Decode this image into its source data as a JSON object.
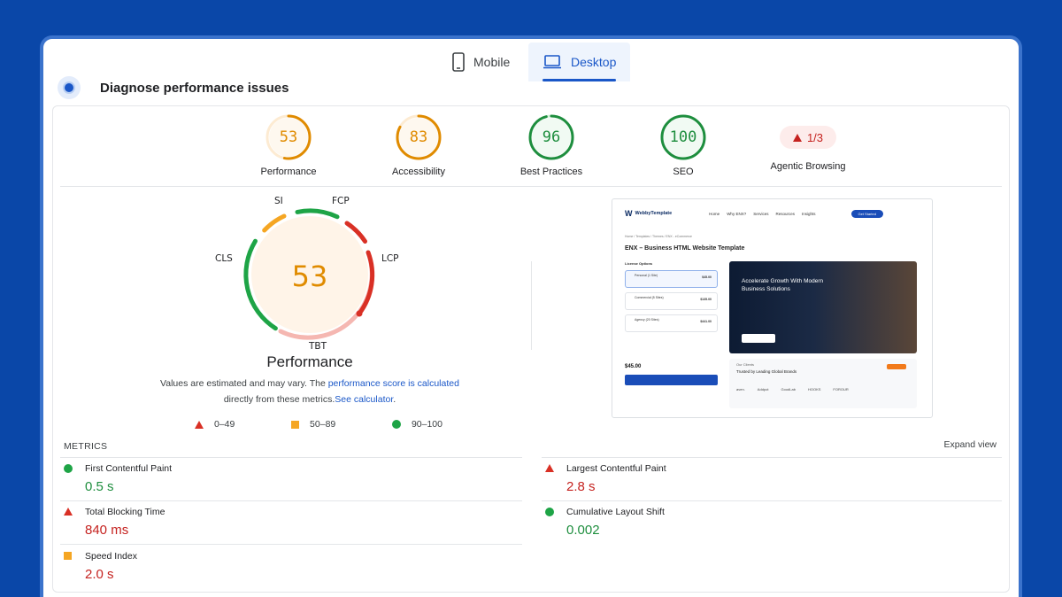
{
  "tabs": [
    {
      "label": "Mobile",
      "icon": "phone-icon",
      "active": false
    },
    {
      "label": "Desktop",
      "icon": "laptop-icon",
      "active": true
    }
  ],
  "header": {
    "title": "Diagnose performance issues"
  },
  "scores": [
    {
      "label": "Performance",
      "value": "53",
      "score": 53,
      "color": "#e08b00",
      "track": "#fdebd2"
    },
    {
      "label": "Accessibility",
      "value": "83",
      "score": 83,
      "color": "#e08b00",
      "track": "#fdebd2"
    },
    {
      "label": "Best Practices",
      "value": "96",
      "score": 96,
      "color": "#1e8e3e",
      "track": "#d6f2dc"
    },
    {
      "label": "SEO",
      "value": "100",
      "score": 100,
      "color": "#1e8e3e",
      "track": "#d6f2dc"
    }
  ],
  "agentic": {
    "label": "Agentic Browsing",
    "value": "1/3"
  },
  "perf": {
    "score": "53",
    "title": "Performance",
    "segments": {
      "si": "SI",
      "fcp": "FCP",
      "lcp": "LCP",
      "tbt": "TBT",
      "cls": "CLS"
    },
    "note_prefix": "Values are estimated and may vary. The ",
    "note_link": "performance score is calculated",
    "note_mid": "directly from these metrics.",
    "note_link2": "See calculator",
    "note_end": "."
  },
  "legend": [
    {
      "range": "0–49",
      "shape": "triangle",
      "color": "#d93025"
    },
    {
      "range": "50–89",
      "shape": "square",
      "color": "#f5a623"
    },
    {
      "range": "90–100",
      "shape": "circle",
      "color": "#1ea446"
    }
  ],
  "thumbnail": {
    "logo": "WebbyTemplate",
    "nav": [
      "Home",
      "Why ENX?",
      "Services",
      "Resources",
      "Insights"
    ],
    "cta": "Get Started",
    "breadcrumb": "Home / Templates / Themes / ENX - eCommerce",
    "title": "ENX – Business HTML Website Template",
    "license_label": "License Options",
    "options": [
      {
        "name": "Personal (1 Site)",
        "price": "$45.00"
      },
      {
        "name": "Commercial (5 Sites)",
        "price": "$135.00"
      },
      {
        "name": "Agency (20 Sites)",
        "price": "$441.00"
      }
    ],
    "hero": "Accelerate Growth With Modern Business Solutions",
    "price": "$45.00",
    "clients_label": "Our Clients",
    "clients_title": "Trusted by Leading Global Brands",
    "client_logos": [
      "aven.",
      "Addpot",
      "GoodLab",
      "HOOKS",
      "FOROUR"
    ]
  },
  "metrics": {
    "heading": "METRICS",
    "expand": "Expand view",
    "items": [
      {
        "name": "First Contentful Paint",
        "value": "0.5 s",
        "status": "good"
      },
      {
        "name": "Largest Contentful Paint",
        "value": "2.8 s",
        "status": "poor"
      },
      {
        "name": "Total Blocking Time",
        "value": "840 ms",
        "status": "poor"
      },
      {
        "name": "Cumulative Layout Shift",
        "value": "0.002",
        "status": "good"
      },
      {
        "name": "Speed Index",
        "value": "2.0 s",
        "status": "average"
      }
    ]
  }
}
